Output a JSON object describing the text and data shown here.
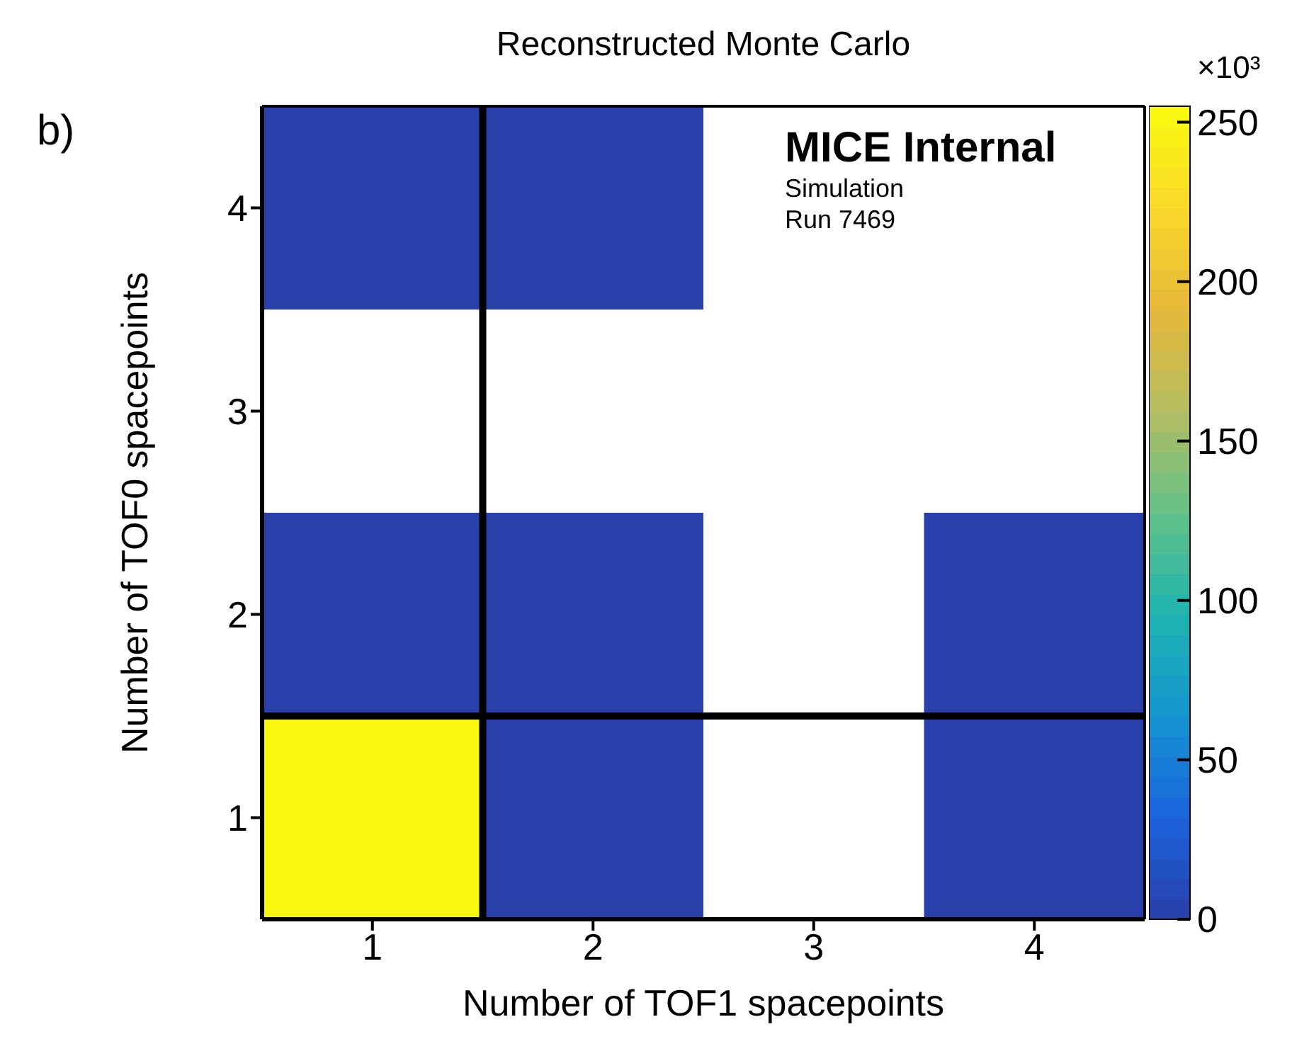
{
  "chart_data": {
    "type": "heatmap",
    "title": "Reconstructed Monte Carlo",
    "xlabel": "Number of TOF1 spacepoints",
    "ylabel": "Number of TOF0 spacepoints",
    "clabel": "×10³",
    "categories": [
      "1",
      "2",
      "3",
      "4"
    ],
    "y_categories": [
      "4",
      "3",
      "2",
      "1"
    ],
    "cells": [
      [
        2,
        2,
        null,
        null
      ],
      [
        null,
        null,
        null,
        null
      ],
      [
        2,
        2,
        null,
        2
      ],
      [
        252,
        2,
        null,
        2
      ]
    ],
    "clim": [
      0,
      255
    ],
    "cticks": [
      0,
      50,
      100,
      150,
      200,
      250
    ],
    "annotations": [
      "b)",
      "MICE Internal",
      "Simulation",
      "Run 7469"
    ]
  }
}
